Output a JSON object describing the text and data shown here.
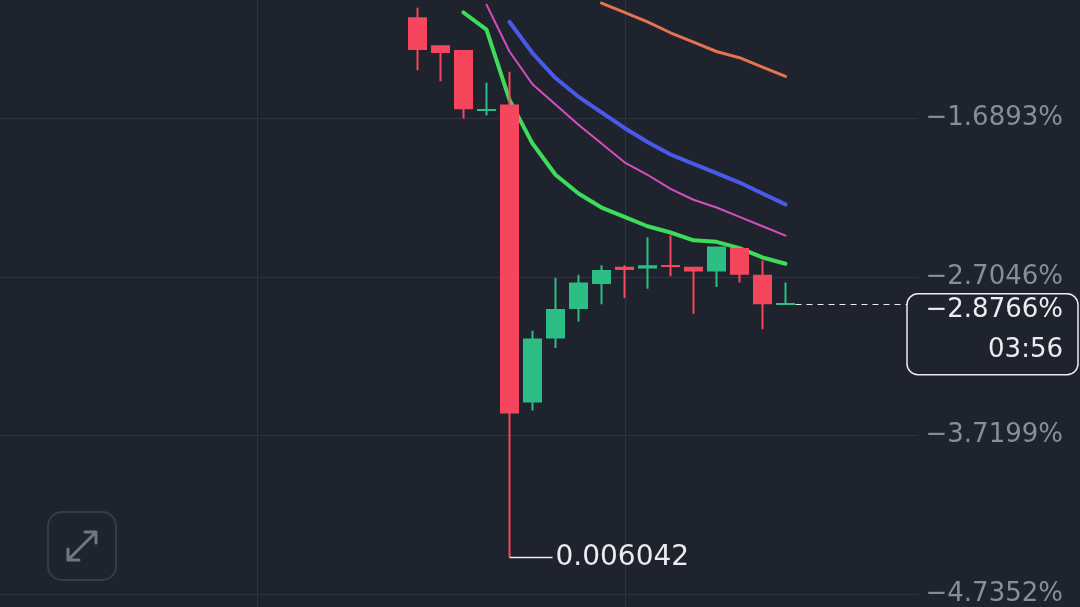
{
  "chart_data": {
    "type": "candlestick",
    "categories": [
      null,
      null,
      null,
      null,
      null,
      null,
      null,
      null,
      null,
      null,
      null,
      null,
      null,
      null,
      null,
      null,
      null,
      null,
      null,
      null,
      null,
      null,
      null,
      null,
      null,
      null,
      null,
      null,
      null,
      null,
      null,
      null,
      null,
      null,
      null,
      null,
      null,
      null,
      null
    ],
    "ohlc": [
      null,
      null,
      null,
      null,
      null,
      null,
      null,
      null,
      null,
      null,
      null,
      null,
      null,
      null,
      null,
      null,
      null,
      [
        -1.04,
        -0.98,
        -1.38,
        -1.25
      ],
      [
        -1.22,
        -1.22,
        -1.45,
        -1.27
      ],
      [
        -1.25,
        -1.25,
        -1.69,
        -1.63
      ],
      [
        -1.64,
        -1.46,
        -1.67,
        -1.63
      ],
      [
        -1.6,
        -1.39,
        -4.5,
        -3.58
      ],
      [
        -3.51,
        -3.05,
        -3.56,
        -3.1
      ],
      [
        -3.1,
        -2.71,
        -3.16,
        -2.91
      ],
      [
        -2.91,
        -2.69,
        -2.99,
        -2.74
      ],
      [
        -2.75,
        -2.63,
        -2.88,
        -2.66
      ],
      [
        -2.64,
        -2.63,
        -2.84,
        -2.66
      ],
      [
        -2.65,
        -2.45,
        -2.78,
        -2.63
      ],
      [
        -2.63,
        -2.44,
        -2.7,
        -2.64
      ],
      [
        -2.64,
        -2.64,
        -2.94,
        -2.67
      ],
      [
        -2.67,
        -2.51,
        -2.77,
        -2.51
      ],
      [
        -2.52,
        -2.52,
        -2.74,
        -2.69
      ],
      [
        -2.69,
        -2.6,
        -3.04,
        -2.88
      ],
      [
        -2.88,
        -2.74,
        -2.88,
        -2.8766
      ],
      null,
      null,
      null,
      null,
      null
    ],
    "colors": [
      null,
      null,
      null,
      null,
      null,
      null,
      null,
      null,
      null,
      null,
      null,
      null,
      null,
      null,
      null,
      null,
      null,
      "#f6465d",
      "#f6465d",
      "#f6465d",
      "#2ebd85",
      "#f6465d",
      "#2ebd85",
      "#2ebd85",
      "#2ebd85",
      "#2ebd85",
      "#f6465d",
      "#2ebd85",
      "#f6465d",
      "#f6465d",
      "#2ebd85",
      "#f6465d",
      "#f6465d",
      "#2ebd85",
      null,
      null,
      null,
      null,
      null
    ],
    "series": [
      {
        "type": "line",
        "color": "#e4744f",
        "values": [
          null,
          null,
          null,
          null,
          null,
          null,
          null,
          null,
          null,
          null,
          null,
          null,
          null,
          null,
          null,
          null,
          null,
          null,
          null,
          null,
          null,
          null,
          null,
          null,
          null,
          -0.95,
          -1.01,
          -1.07,
          -1.14,
          -1.2,
          -1.26,
          -1.3,
          -1.36,
          -1.42,
          null,
          null,
          null,
          null,
          null
        ]
      },
      {
        "type": "line",
        "color": "#4a5ae8",
        "values": [
          null,
          null,
          null,
          null,
          null,
          null,
          null,
          null,
          null,
          null,
          null,
          null,
          null,
          null,
          null,
          null,
          null,
          null,
          null,
          null,
          null,
          -1.07,
          -1.27,
          -1.43,
          -1.55,
          -1.65,
          -1.75,
          -1.84,
          -1.92,
          -1.98,
          -2.04,
          -2.1,
          -2.17,
          -2.24,
          null,
          null,
          null,
          null,
          null
        ]
      },
      {
        "type": "line",
        "color": "#d64fc0",
        "values": [
          null,
          null,
          null,
          null,
          null,
          null,
          null,
          null,
          null,
          null,
          null,
          null,
          null,
          null,
          null,
          null,
          null,
          null,
          null,
          null,
          -0.96,
          -1.26,
          -1.47,
          -1.6,
          -1.73,
          -1.85,
          -1.97,
          -2.05,
          -2.14,
          -2.21,
          -2.26,
          -2.32,
          -2.38,
          -2.44,
          null,
          null,
          null,
          null,
          null
        ]
      },
      {
        "type": "line",
        "color": "#3ddc5a",
        "values": [
          null,
          null,
          null,
          null,
          null,
          null,
          null,
          null,
          null,
          null,
          null,
          null,
          null,
          null,
          null,
          null,
          null,
          null,
          null,
          -1.01,
          -1.12,
          -1.57,
          -1.85,
          -2.05,
          -2.17,
          -2.26,
          -2.32,
          -2.38,
          -2.42,
          -2.47,
          -2.48,
          -2.52,
          -2.58,
          -2.62,
          null,
          null,
          null,
          null,
          null
        ]
      }
    ],
    "ylim": [
      -4.82,
      -0.93
    ],
    "yticks": [
      {
        "value": -1.6893,
        "label": "−1.6893%"
      },
      {
        "value": -2.7046,
        "label": "−2.7046%"
      },
      {
        "value": -3.7199,
        "label": "−3.7199%"
      },
      {
        "value": -4.7352,
        "label": "−4.7352%"
      }
    ],
    "tick_labels": "y",
    "grid": true,
    "ref_lines": [
      {
        "axis": "y",
        "value": -2.8766,
        "label": "−2.8766%",
        "color": "#eaecef",
        "line_style": "dashed"
      }
    ],
    "annotations": [
      "0.006042",
      "03:56"
    ]
  }
}
